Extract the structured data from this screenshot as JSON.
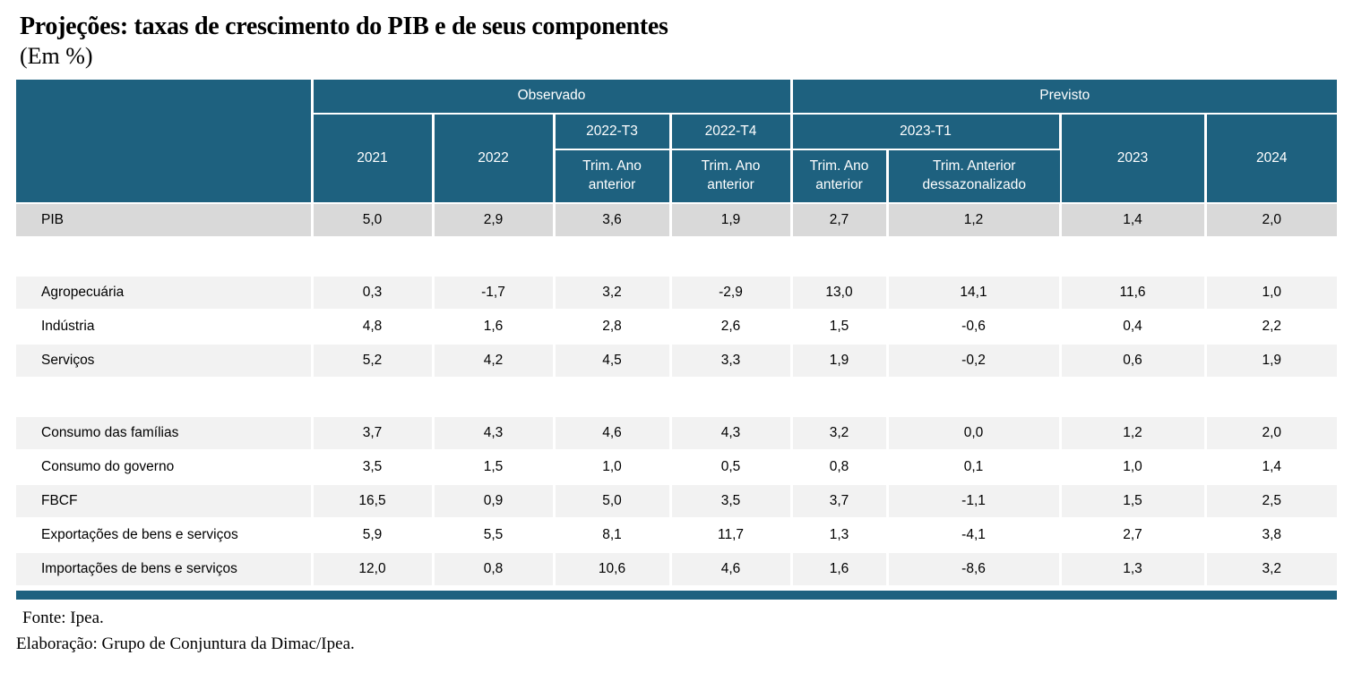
{
  "title": "Projeções: taxas de crescimento do PIB e de seus componentes",
  "subtitle": "(Em %)",
  "colors": {
    "header_teal": "#1E617F",
    "pib_row_gray": "#D9D9D9",
    "stripe_gray": "#F2F2F2"
  },
  "table": {
    "header": {
      "observado": "Observado",
      "previsto": "Previsto",
      "y2021": "2021",
      "y2022": "2022",
      "q2022t3": "2022-T3",
      "q2022t4": "2022-T4",
      "q2023t1": "2023-T1",
      "trim_ano_anterior": "Trim. Ano anterior",
      "trim_anterior_dessaz": "Trim. Anterior dessazonalizado",
      "y2023": "2023",
      "y2024": "2024"
    }
  },
  "chart_data": {
    "type": "table",
    "title": "Projeções: taxas de crescimento do PIB e de seus componentes (Em %)",
    "column_groups": [
      {
        "label": "Observado",
        "span": 4
      },
      {
        "label": "Previsto",
        "span": 4
      }
    ],
    "columns": [
      "2021",
      "2022",
      "2022-T3 Trim. Ano anterior",
      "2022-T4 Trim. Ano anterior",
      "2023-T1 Trim. Ano anterior",
      "2023-T1 Trim. Anterior dessazonalizado",
      "2023",
      "2024"
    ],
    "rows": [
      {
        "label": "PIB",
        "style": "pib",
        "values": [
          "5,0",
          "2,9",
          "3,6",
          "1,9",
          "2,7",
          "1,2",
          "1,4",
          "2,0"
        ]
      },
      {
        "style": "spacer"
      },
      {
        "label": "Agropecuária",
        "style": "stripe",
        "values": [
          "0,3",
          "-1,7",
          "3,2",
          "-2,9",
          "13,0",
          "14,1",
          "11,6",
          "1,0"
        ]
      },
      {
        "label": "Indústria",
        "style": "plain",
        "values": [
          "4,8",
          "1,6",
          "2,8",
          "2,6",
          "1,5",
          "-0,6",
          "0,4",
          "2,2"
        ]
      },
      {
        "label": "Serviços",
        "style": "stripe",
        "values": [
          "5,2",
          "4,2",
          "4,5",
          "3,3",
          "1,9",
          "-0,2",
          "0,6",
          "1,9"
        ]
      },
      {
        "style": "spacer"
      },
      {
        "label": "Consumo das famílias",
        "style": "stripe",
        "values": [
          "3,7",
          "4,3",
          "4,6",
          "4,3",
          "3,2",
          "0,0",
          "1,2",
          "2,0"
        ]
      },
      {
        "label": "Consumo do governo",
        "style": "plain",
        "values": [
          "3,5",
          "1,5",
          "1,0",
          "0,5",
          "0,8",
          "0,1",
          "1,0",
          "1,4"
        ]
      },
      {
        "label": "FBCF",
        "style": "stripe",
        "values": [
          "16,5",
          "0,9",
          "5,0",
          "3,5",
          "3,7",
          "-1,1",
          "1,5",
          "2,5"
        ]
      },
      {
        "label": "Exportações de bens e serviços",
        "style": "plain",
        "values": [
          "5,9",
          "5,5",
          "8,1",
          "11,7",
          "1,3",
          "-4,1",
          "2,7",
          "3,8"
        ]
      },
      {
        "label": "Importações de bens e serviços",
        "style": "stripe",
        "values": [
          "12,0",
          "0,8",
          "10,6",
          "4,6",
          "1,6",
          "-8,6",
          "1,3",
          "3,2"
        ]
      }
    ]
  },
  "footer": {
    "fonte": "Fonte: Ipea.",
    "elaboracao": "Elaboração: Grupo de Conjuntura da Dimac/Ipea."
  }
}
